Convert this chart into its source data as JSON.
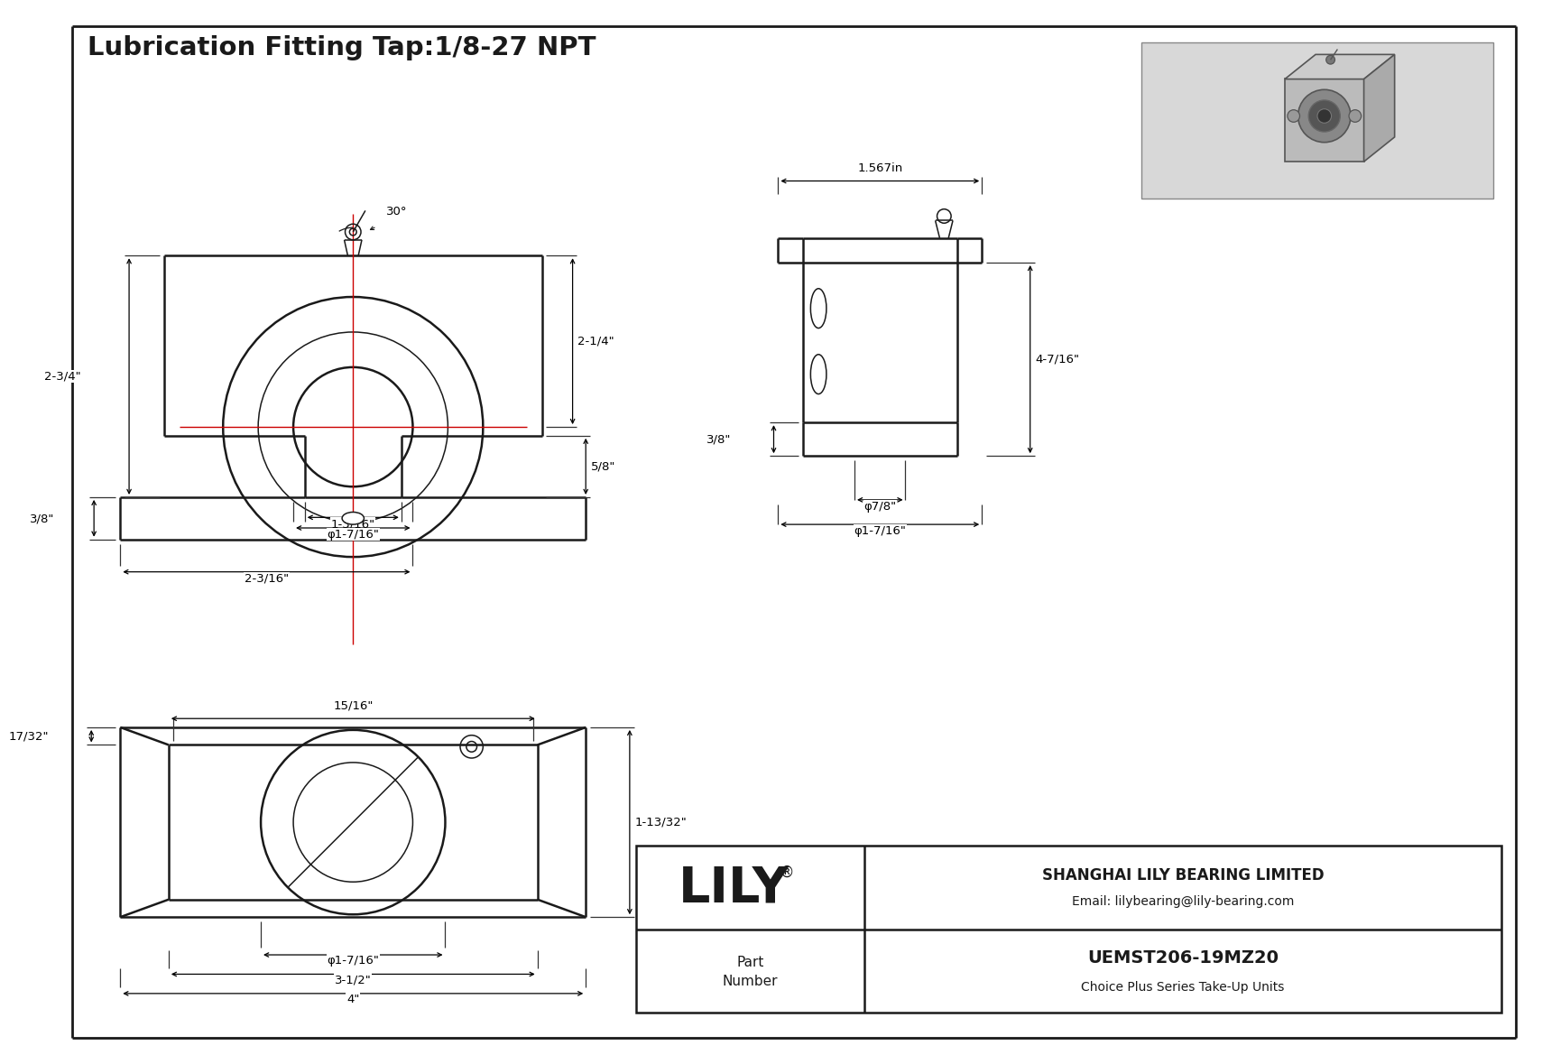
{
  "title": "Lubrication Fitting Tap:1/8-27 NPT",
  "bg_color": "#ffffff",
  "line_color": "#1a1a1a",
  "red_color": "#cc0000",
  "company": "SHANGHAI LILY BEARING LIMITED",
  "email": "Email: lilybearing@lily-bearing.com",
  "part_number": "UEMST206-19MZ20",
  "series": "Choice Plus Series Take-Up Units",
  "dim_angle": "30°",
  "dim_top_width": "1.567in",
  "dim_right_h": "4-7/16\"",
  "dim_h1": "2-1/4\"",
  "dim_h2": "2-3/4\"",
  "dim_w1_left": "3/8\"",
  "dim_w2_slot": "1-3/16\"",
  "dim_d1": "φ1-7/16\"",
  "dim_w3": "2-3/16\"",
  "dim_w4": "5/8\"",
  "dim_d2": "φ7/8\"",
  "dim_d3": "φ1-7/16\"",
  "dim_h3": "3/8\"",
  "dim_h4": "17/32\"",
  "dim_h5": "15/16\"",
  "dim_h6": "1-13/32\"",
  "dim_d4": "φ1-7/16\"",
  "dim_w5": "3-1/2\"",
  "dim_w6": "4\""
}
